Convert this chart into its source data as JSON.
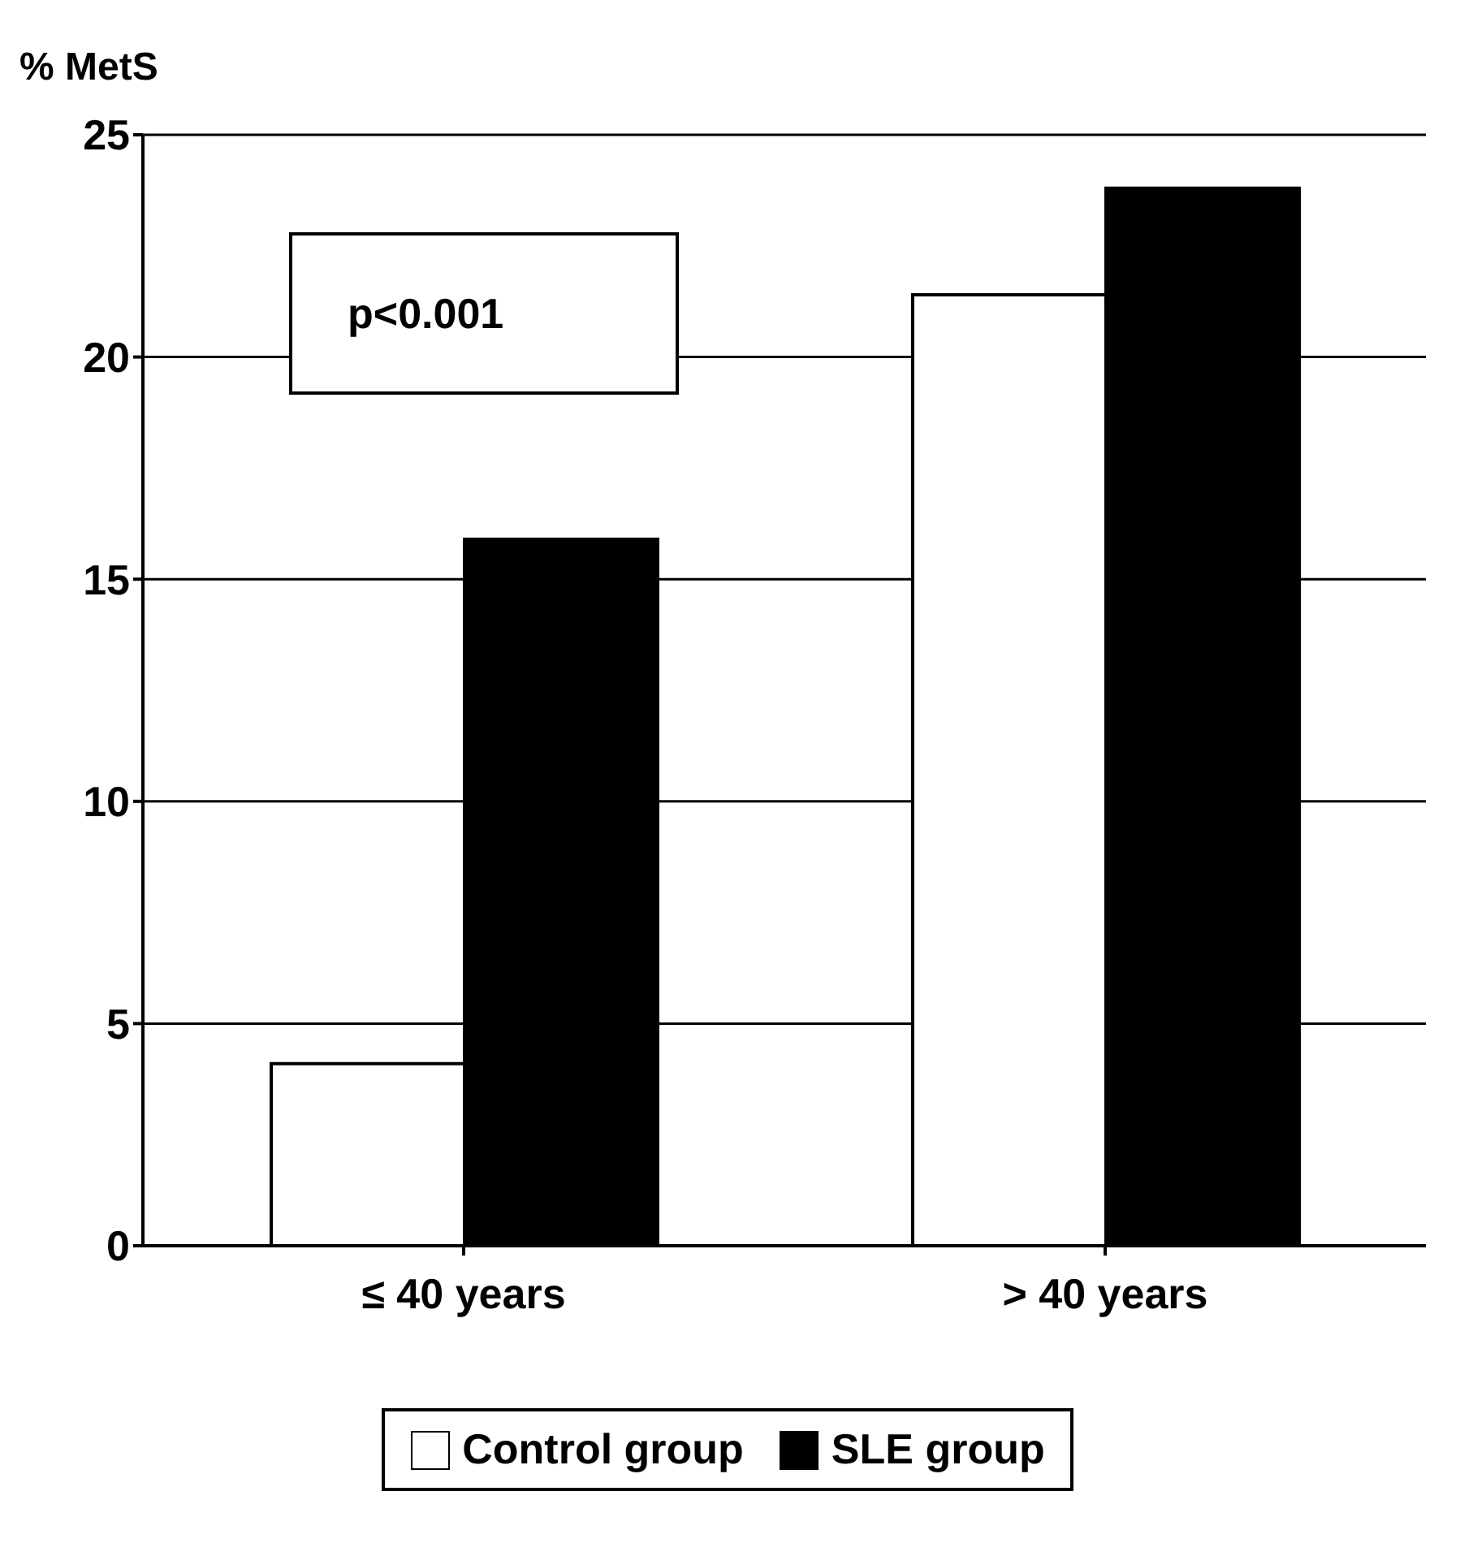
{
  "chart_data": {
    "type": "bar",
    "ylabel": "% MetS",
    "categories": [
      "≤ 40 years",
      "> 40 years"
    ],
    "series": [
      {
        "name": "Control group",
        "color": "#ffffff",
        "values": [
          4.1,
          21.4
        ]
      },
      {
        "name": "SLE group",
        "color": "#000000",
        "values": [
          15.9,
          23.8
        ]
      }
    ],
    "ylim": [
      0,
      25
    ],
    "yticks": [
      0,
      5,
      10,
      15,
      20,
      25
    ],
    "grid": "y",
    "legend": "bottom",
    "annotations": [
      "p<0.001"
    ]
  }
}
